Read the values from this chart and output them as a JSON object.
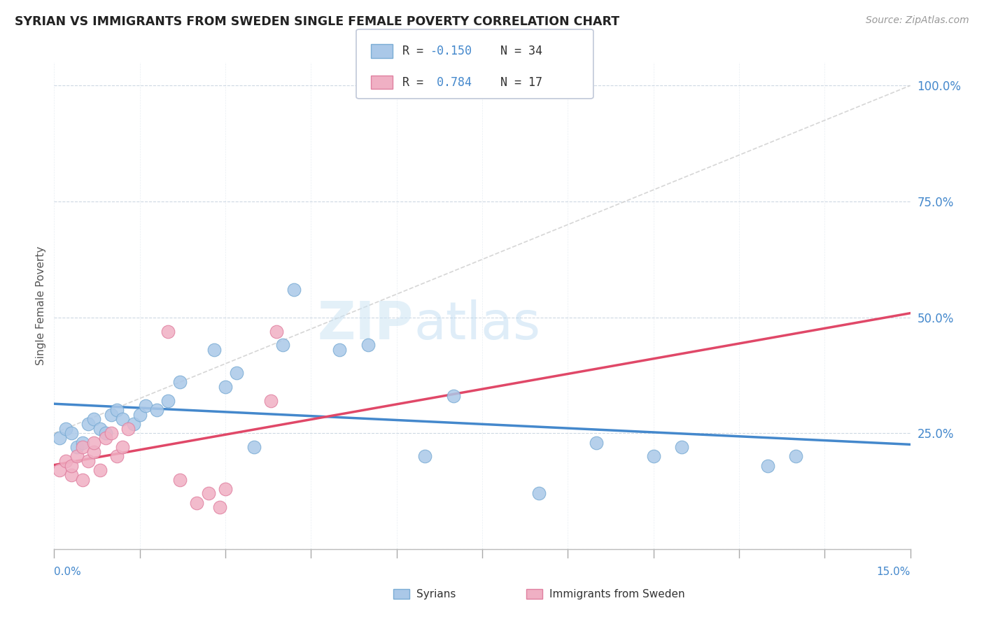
{
  "title": "SYRIAN VS IMMIGRANTS FROM SWEDEN SINGLE FEMALE POVERTY CORRELATION CHART",
  "source": "Source: ZipAtlas.com",
  "ylabel": "Single Female Poverty",
  "xmin": 0.0,
  "xmax": 0.15,
  "ymin": 0.0,
  "ymax": 1.05,
  "color_syrians": "#aac8e8",
  "color_syrians_edge": "#7aacd4",
  "color_sweden": "#f0b0c4",
  "color_sweden_edge": "#e080a0",
  "color_line_syrians": "#4488cc",
  "color_line_sweden": "#e04868",
  "color_grid": "#c8d4e0",
  "color_axis_labels": "#4488cc",
  "color_title": "#222222",
  "color_source": "#999999",
  "ytick_vals": [
    0.0,
    0.25,
    0.5,
    0.75,
    1.0
  ],
  "ytick_labels": [
    "",
    "25.0%",
    "50.0%",
    "75.0%",
    "100.0%"
  ],
  "syrians_x": [
    0.001,
    0.002,
    0.003,
    0.004,
    0.005,
    0.006,
    0.007,
    0.008,
    0.009,
    0.01,
    0.011,
    0.012,
    0.014,
    0.015,
    0.016,
    0.018,
    0.02,
    0.022,
    0.028,
    0.03,
    0.032,
    0.035,
    0.04,
    0.042,
    0.05,
    0.055,
    0.065,
    0.07,
    0.085,
    0.095,
    0.105,
    0.11,
    0.125,
    0.13
  ],
  "syrians_y": [
    0.24,
    0.26,
    0.25,
    0.22,
    0.23,
    0.27,
    0.28,
    0.26,
    0.25,
    0.29,
    0.3,
    0.28,
    0.27,
    0.29,
    0.31,
    0.3,
    0.32,
    0.36,
    0.43,
    0.35,
    0.38,
    0.22,
    0.44,
    0.56,
    0.43,
    0.44,
    0.2,
    0.33,
    0.12,
    0.23,
    0.2,
    0.22,
    0.18,
    0.2
  ],
  "sweden_x": [
    0.001,
    0.002,
    0.003,
    0.003,
    0.004,
    0.005,
    0.005,
    0.006,
    0.007,
    0.007,
    0.008,
    0.009,
    0.01,
    0.011,
    0.012,
    0.013,
    0.02,
    0.022,
    0.025,
    0.027,
    0.029,
    0.03,
    0.038,
    0.039
  ],
  "sweden_y": [
    0.17,
    0.19,
    0.16,
    0.18,
    0.2,
    0.15,
    0.22,
    0.19,
    0.21,
    0.23,
    0.17,
    0.24,
    0.25,
    0.2,
    0.22,
    0.26,
    0.47,
    0.15,
    0.1,
    0.12,
    0.09,
    0.13,
    0.32,
    0.47
  ],
  "watermark_zip": "ZIP",
  "watermark_atlas": "atlas",
  "bottom_legend": [
    "Syrians",
    "Immigrants from Sweden"
  ]
}
